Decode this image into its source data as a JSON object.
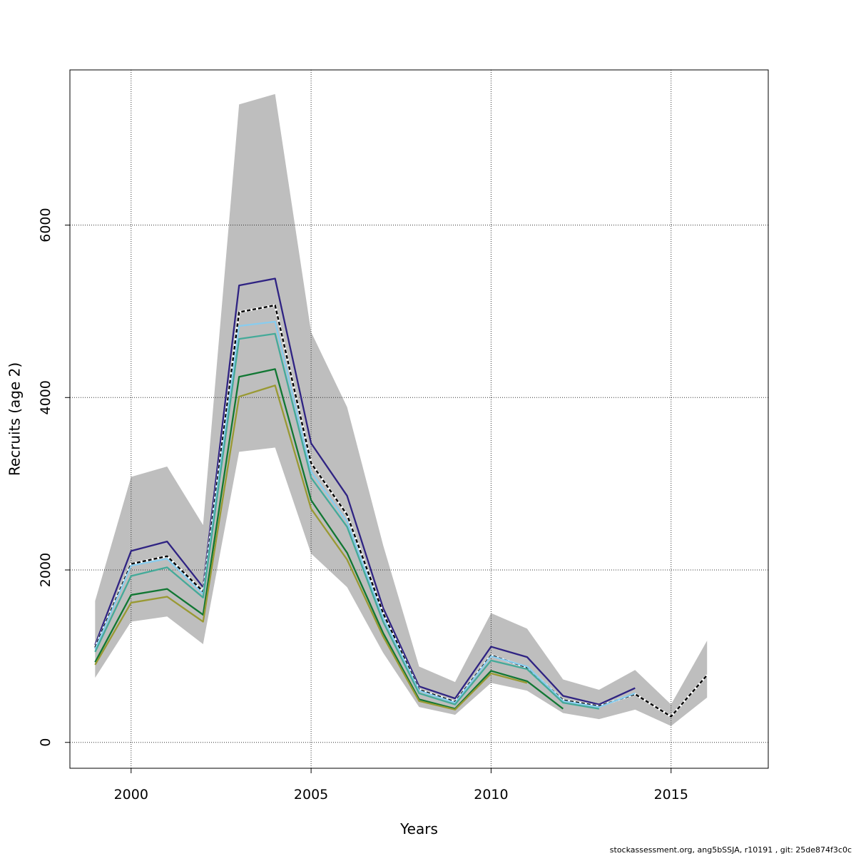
{
  "chart_data": {
    "type": "line",
    "title": "",
    "xlabel": "Years",
    "ylabel": "Recruits (age 2)",
    "xlim": [
      1998.3,
      2017.7
    ],
    "ylim": [
      -300,
      7800
    ],
    "xticks": [
      2000,
      2005,
      2010,
      2015
    ],
    "yticks": [
      0,
      2000,
      4000,
      6000
    ],
    "grid": true,
    "x": [
      1999,
      2000,
      2001,
      2002,
      2003,
      2004,
      2005,
      2006,
      2007,
      2008,
      2009,
      2010,
      2011,
      2012,
      2013,
      2014,
      2015,
      2016
    ],
    "band": {
      "color": "#bebebe",
      "upper": [
        1640,
        3080,
        3200,
        2520,
        7400,
        7520,
        4760,
        3890,
        2290,
        880,
        700,
        1500,
        1320,
        730,
        610,
        840,
        440,
        1180
      ],
      "lower": [
        750,
        1400,
        1460,
        1140,
        3370,
        3420,
        2190,
        1800,
        1040,
        410,
        320,
        690,
        600,
        340,
        270,
        380,
        190,
        520
      ]
    },
    "series": [
      {
        "color": "#2f2383",
        "style": "solid",
        "values": [
          1130,
          2220,
          2330,
          1800,
          5300,
          5380,
          3470,
          2860,
          1560,
          650,
          510,
          1110,
          990,
          540,
          440,
          630,
          null,
          null
        ]
      },
      {
        "color": "#000000",
        "style": "dashed",
        "values": [
          1100,
          2070,
          2160,
          1750,
          4990,
          5070,
          3240,
          2640,
          1500,
          610,
          470,
          1010,
          870,
          490,
          420,
          560,
          300,
          780
        ]
      },
      {
        "color": "#88ccee",
        "style": "solid",
        "values": [
          1080,
          2050,
          2130,
          1720,
          4830,
          4880,
          3140,
          2560,
          1450,
          600,
          460,
          1000,
          880,
          480,
          410,
          570,
          null,
          null
        ]
      },
      {
        "color": "#44aa99",
        "style": "solid",
        "values": [
          1050,
          1930,
          2030,
          1680,
          4680,
          4740,
          3070,
          2500,
          1400,
          570,
          440,
          950,
          850,
          460,
          390,
          null,
          null,
          null
        ]
      },
      {
        "color": "#117733",
        "style": "solid",
        "values": [
          930,
          1710,
          1780,
          1480,
          4240,
          4330,
          2810,
          2200,
          1270,
          500,
          390,
          830,
          710,
          390,
          null,
          null,
          null,
          null
        ]
      },
      {
        "color": "#999933",
        "style": "solid",
        "values": [
          900,
          1620,
          1690,
          1400,
          4010,
          4140,
          2710,
          2120,
          1230,
          480,
          380,
          800,
          690,
          null,
          null,
          null,
          null,
          null
        ]
      }
    ]
  },
  "footer": "stockassessment.org, ang5bSSJA, r10191 , git: 25de874f3c0c"
}
